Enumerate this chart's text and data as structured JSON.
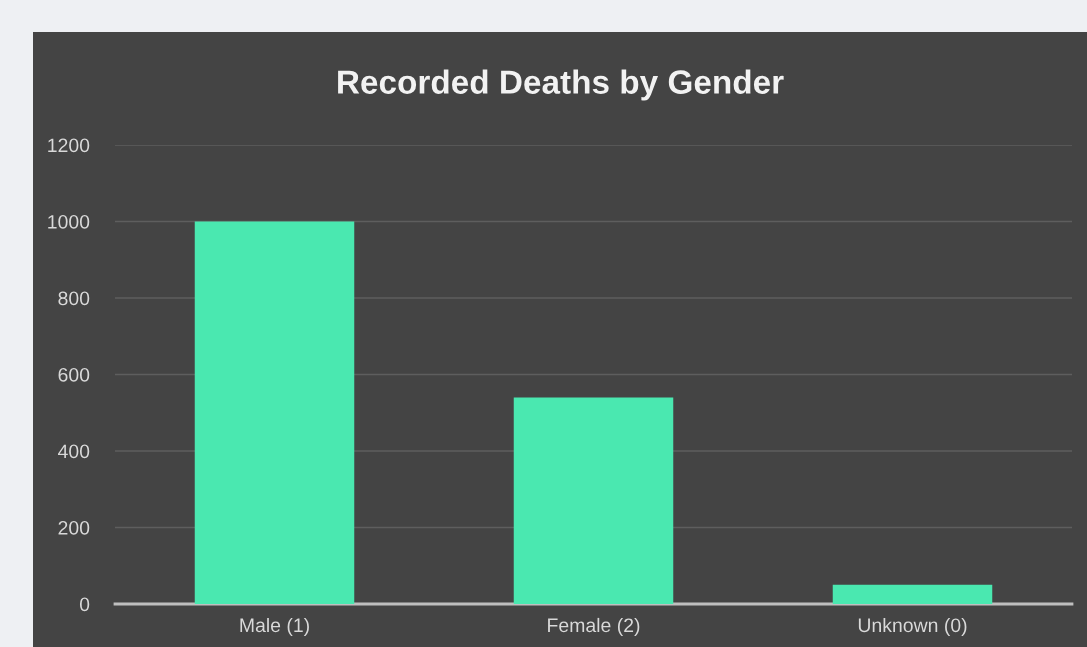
{
  "chart_data": {
    "type": "bar",
    "title": "Recorded Deaths by Gender",
    "categories": [
      "Male (1)",
      "Female (2)",
      "Unknown (0)"
    ],
    "values": [
      1000,
      540,
      50
    ],
    "color": "#4ae8b0",
    "ylim": [
      0,
      1200
    ],
    "yticks": [
      0,
      200,
      400,
      600,
      800,
      1000,
      1200
    ],
    "grid": "y"
  }
}
